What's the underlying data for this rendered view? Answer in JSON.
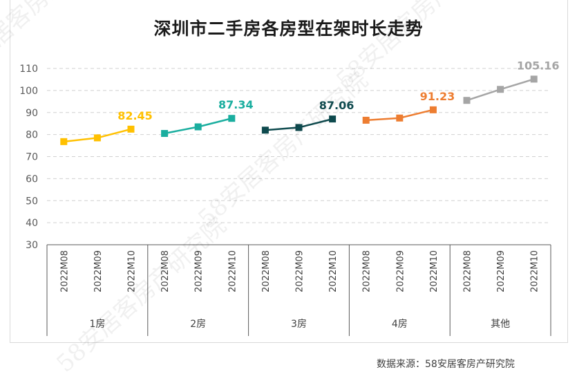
{
  "chart_data": {
    "type": "line",
    "title": "深圳市二手房各房型在架时长走势",
    "ylim": [
      30,
      110
    ],
    "yticks": [
      30,
      40,
      50,
      60,
      70,
      80,
      90,
      100,
      110
    ],
    "grid": true,
    "periods": [
      "2022M08",
      "2022M09",
      "2022M10"
    ],
    "series": [
      {
        "name": "1房",
        "color": "#FFC000",
        "values": [
          76.8,
          78.5,
          82.45
        ],
        "end_label": "82.45"
      },
      {
        "name": "2房",
        "color": "#1AAE9F",
        "values": [
          80.5,
          83.5,
          87.34
        ],
        "end_label": "87.34"
      },
      {
        "name": "3房",
        "color": "#0E4A4E",
        "values": [
          82.0,
          83.2,
          87.06
        ],
        "end_label": "87.06"
      },
      {
        "name": "4房",
        "color": "#ED7D31",
        "values": [
          86.5,
          87.5,
          91.23
        ],
        "end_label": "91.23"
      },
      {
        "name": "其他",
        "color": "#A5A5A5",
        "values": [
          95.5,
          100.5,
          105.16
        ],
        "end_label": "105.16"
      }
    ]
  },
  "source_text": "数据来源：58安居客房产研究院",
  "watermark_text": "58安居客房产研究院"
}
